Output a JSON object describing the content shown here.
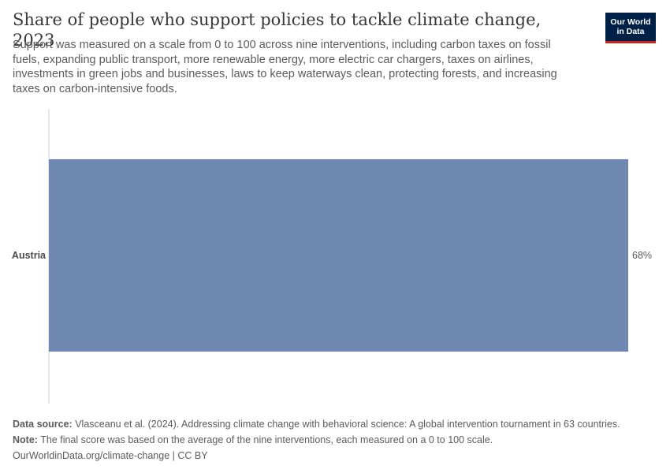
{
  "header": {
    "title": "Share of people who support policies to tackle climate change, 2023",
    "subtitle": "Support was measured on a scale from 0 to 100 across nine interventions, including carbon taxes on fossil fuels, expanding public transport, more renewable energy, more electric car chargers, taxes on airlines, investments in green jobs and businesses, laws to keep waterways clean, protecting forests, and increasing taxes on carbon-intensive foods.",
    "logo_line1": "Our World",
    "logo_line2": "in Data"
  },
  "chart_data": {
    "type": "bar",
    "orientation": "horizontal",
    "categories": [
      "Austria"
    ],
    "values": [
      68
    ],
    "value_labels": [
      "68%"
    ],
    "xlim": [
      0,
      68
    ],
    "bar_color": "#6f88b2",
    "grid": false
  },
  "footer": {
    "source_label": "Data source:",
    "source_text": "Vlasceanu et al. (2024). Addressing climate change with behavioral science: A global intervention tournament in 63 countries.",
    "note_label": "Note:",
    "note_text": "The final score was based on the average of the nine interventions, each measured on a 0 to 100 scale.",
    "credit": "OurWorldinData.org/climate-change | CC BY"
  },
  "colors": {
    "brand_navy": "#002147",
    "brand_red": "#ce261e",
    "axis": "#cccccc"
  }
}
